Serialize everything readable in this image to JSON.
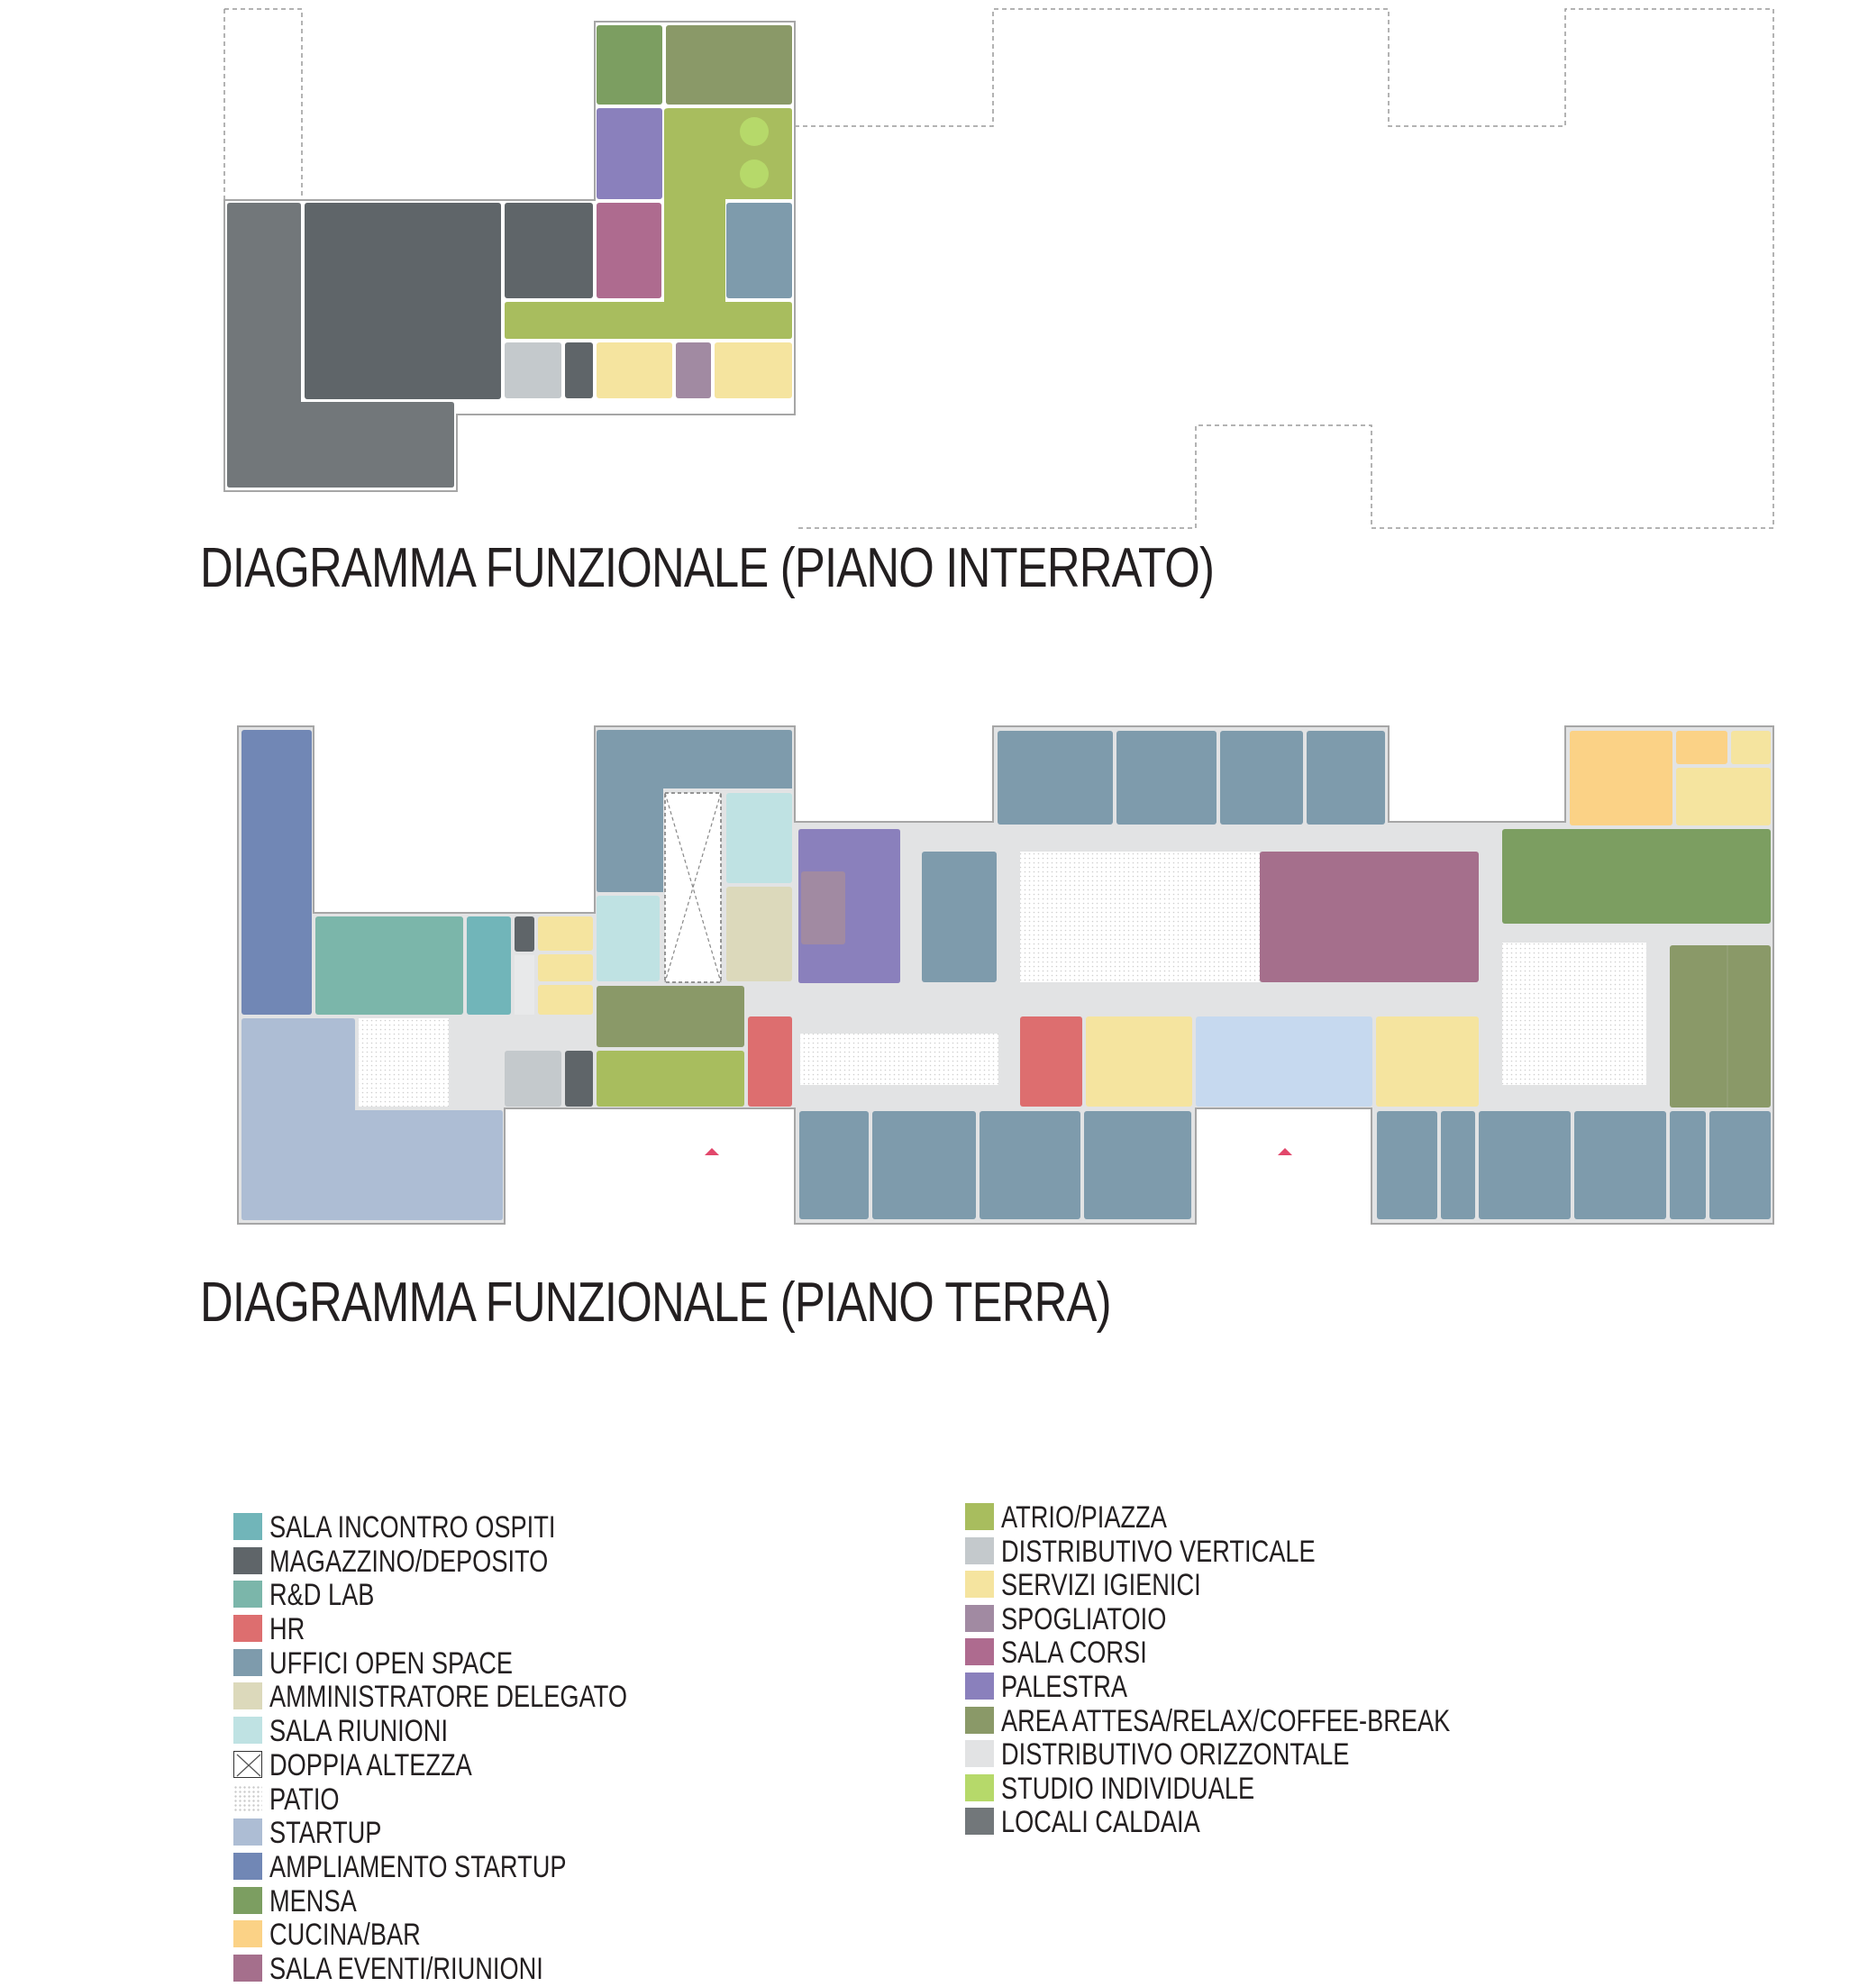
{
  "titles": {
    "basement": "DIAGRAMMA FUNZIONALE (PIANO INTERRATO)",
    "ground": "DIAGRAMMA FUNZIONALE (PIANO TERRA)"
  },
  "legend": {
    "left": [
      {
        "key": "sala-incontro-ospiti",
        "label": "SALA INCONTRO OSPITI",
        "color": "#71b5b9"
      },
      {
        "key": "magazzino-deposito",
        "label": "MAGAZZINO/DEPOSITO",
        "color": "#5f6569"
      },
      {
        "key": "rd-lab",
        "label": "R&D LAB",
        "color": "#7bb6aa"
      },
      {
        "key": "hr",
        "label": "HR",
        "color": "#dd6e6f"
      },
      {
        "key": "uffici-open-space",
        "label": "UFFICI OPEN SPACE",
        "color": "#7e9bac"
      },
      {
        "key": "amministratore-delegato",
        "label": "AMMINISTRATORE DELEGATO",
        "color": "#dcd9bb"
      },
      {
        "key": "sala-riunioni",
        "label": "SALA RIUNIONI",
        "color": "#bfe2e3"
      },
      {
        "key": "doppia-altezza",
        "label": "DOPPIA ALTEZZA",
        "color": "#ffffff",
        "pattern": "cross"
      },
      {
        "key": "patio",
        "label": "PATIO",
        "color": "#ffffff",
        "pattern": "dots"
      },
      {
        "key": "startup",
        "label": "STARTUP",
        "color": "#adbdd4"
      },
      {
        "key": "ampliamento-startup",
        "label": "AMPLIAMENTO STARTUP",
        "color": "#7187b5"
      },
      {
        "key": "mensa",
        "label": "MENSA",
        "color": "#7c9e61"
      },
      {
        "key": "cucina-bar",
        "label": "CUCINA/BAR",
        "color": "#fbd286"
      },
      {
        "key": "sala-eventi-riunioni",
        "label": "SALA EVENTI/RIUNIONI",
        "color": "#a56f8c"
      }
    ],
    "right": [
      {
        "key": "atrio-piazza",
        "label": "ATRIO/PIAZZA",
        "color": "#a8bd5e"
      },
      {
        "key": "distributivo-verticale",
        "label": "DISTRIBUTIVO VERTICALE",
        "color": "#c4c9cc"
      },
      {
        "key": "servizi-igienici",
        "label": "SERVIZI IGIENICI",
        "color": "#f5e49f"
      },
      {
        "key": "spogliatoio",
        "label": "SPOGLIATOIO",
        "color": "#a18aa2"
      },
      {
        "key": "sala-corsi",
        "label": "SALA CORSI",
        "color": "#ae6b8f"
      },
      {
        "key": "palestra",
        "label": "PALESTRA",
        "color": "#8a80bc"
      },
      {
        "key": "area-attesa",
        "label": "AREA ATTESA/RELAX/COFFEE-BREAK",
        "color": "#8a9968"
      },
      {
        "key": "distributivo-orizzontale",
        "label": "DISTRIBUTIVO ORIZZONTALE",
        "color": "#e2e3e4"
      },
      {
        "key": "studio-individuale",
        "label": "STUDIO INDIVIDUALE",
        "color": "#b6d96a"
      },
      {
        "key": "locali-caldaia",
        "label": "LOCALI CALDAIA",
        "color": "#72777a"
      }
    ]
  },
  "colors": {
    "outline": "#a6a6a6",
    "entrance_marker": "#e2476b",
    "title_text": "#231f20"
  }
}
